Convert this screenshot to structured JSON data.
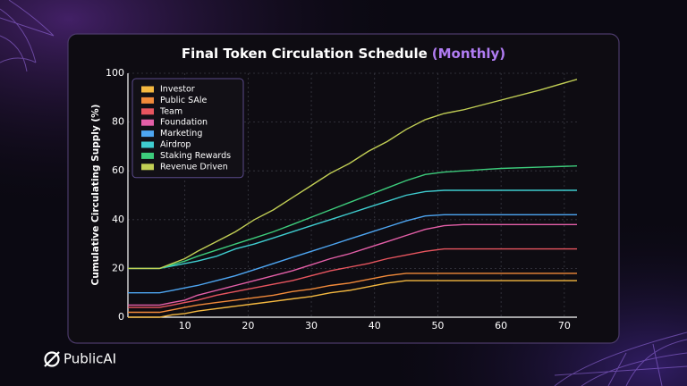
{
  "brand": "PublicAI",
  "chart_data": {
    "type": "line",
    "title": "Final Token Circulation Schedule",
    "subtitle": "(Monthly)",
    "y_label": "Cumulative Circulating Supply (%)",
    "x": [
      1,
      4,
      6,
      8,
      10,
      12,
      15,
      18,
      21,
      24,
      27,
      30,
      33,
      36,
      39,
      42,
      45,
      48,
      51,
      54,
      57,
      60,
      66,
      72
    ],
    "xlim": [
      1,
      72
    ],
    "xticks": [
      10,
      20,
      30,
      40,
      50,
      60,
      70
    ],
    "ylim": [
      0,
      100
    ],
    "yticks": [
      0,
      20,
      40,
      60,
      80,
      100
    ],
    "grid": true,
    "legend": "upper left",
    "series": [
      {
        "name": "Investor",
        "color": "#f5b940",
        "values": [
          0,
          0,
          0,
          1,
          1.5,
          2.5,
          3.5,
          4.5,
          5.5,
          6.5,
          7.5,
          8.5,
          10,
          11,
          12.5,
          14,
          15,
          15,
          15,
          15,
          15,
          15,
          15,
          15
        ]
      },
      {
        "name": "Public SAle",
        "color": "#f28a3a",
        "values": [
          2,
          2,
          2,
          3,
          4,
          5,
          6,
          7,
          8,
          9,
          10.5,
          11.5,
          13,
          14,
          15.5,
          17,
          18,
          18,
          18,
          18,
          18,
          18,
          18,
          18
        ]
      },
      {
        "name": "Team",
        "color": "#e8555f",
        "values": [
          4,
          4,
          4,
          5,
          6,
          7,
          9,
          10.5,
          12,
          13.5,
          15,
          17,
          19,
          20.5,
          22,
          24,
          25.5,
          27,
          28,
          28,
          28,
          28,
          28,
          28
        ]
      },
      {
        "name": "Foundation",
        "color": "#e45fa8",
        "values": [
          5,
          5,
          5,
          6,
          7,
          9,
          11,
          13,
          15,
          17,
          19,
          21.5,
          24,
          26,
          28.5,
          31,
          33.5,
          36,
          37.5,
          38,
          38,
          38,
          38,
          38
        ]
      },
      {
        "name": "Marketing",
        "color": "#4ea6f2",
        "values": [
          10,
          10,
          10,
          11,
          12,
          13,
          15,
          17,
          19.5,
          22,
          24.5,
          27,
          29.5,
          32,
          34.5,
          37,
          39.5,
          41.5,
          42,
          42,
          42,
          42,
          42,
          42
        ]
      },
      {
        "name": "Airdrop",
        "color": "#3fcdd0",
        "values": [
          20,
          20,
          20,
          21,
          22,
          23,
          25,
          28,
          30,
          32.5,
          35,
          37.5,
          40,
          42.5,
          45,
          47.5,
          50,
          51.5,
          52,
          52,
          52,
          52,
          52,
          52
        ]
      },
      {
        "name": "Staking Rewards",
        "color": "#3dcc7c",
        "values": [
          20,
          20,
          20,
          21.5,
          23,
          25,
          27.5,
          30,
          32.5,
          35,
          38,
          41,
          44,
          47,
          50,
          53,
          56,
          58.5,
          59.5,
          60,
          60.5,
          61,
          61.5,
          62
        ]
      },
      {
        "name": "Revenue Driven",
        "color": "#c2cf55",
        "values": [
          20,
          20,
          20,
          22,
          24,
          27,
          31,
          35,
          40,
          44,
          49,
          54,
          59,
          63,
          68,
          72,
          77,
          81,
          83.5,
          85,
          87,
          89,
          93,
          97.5
        ]
      }
    ]
  }
}
